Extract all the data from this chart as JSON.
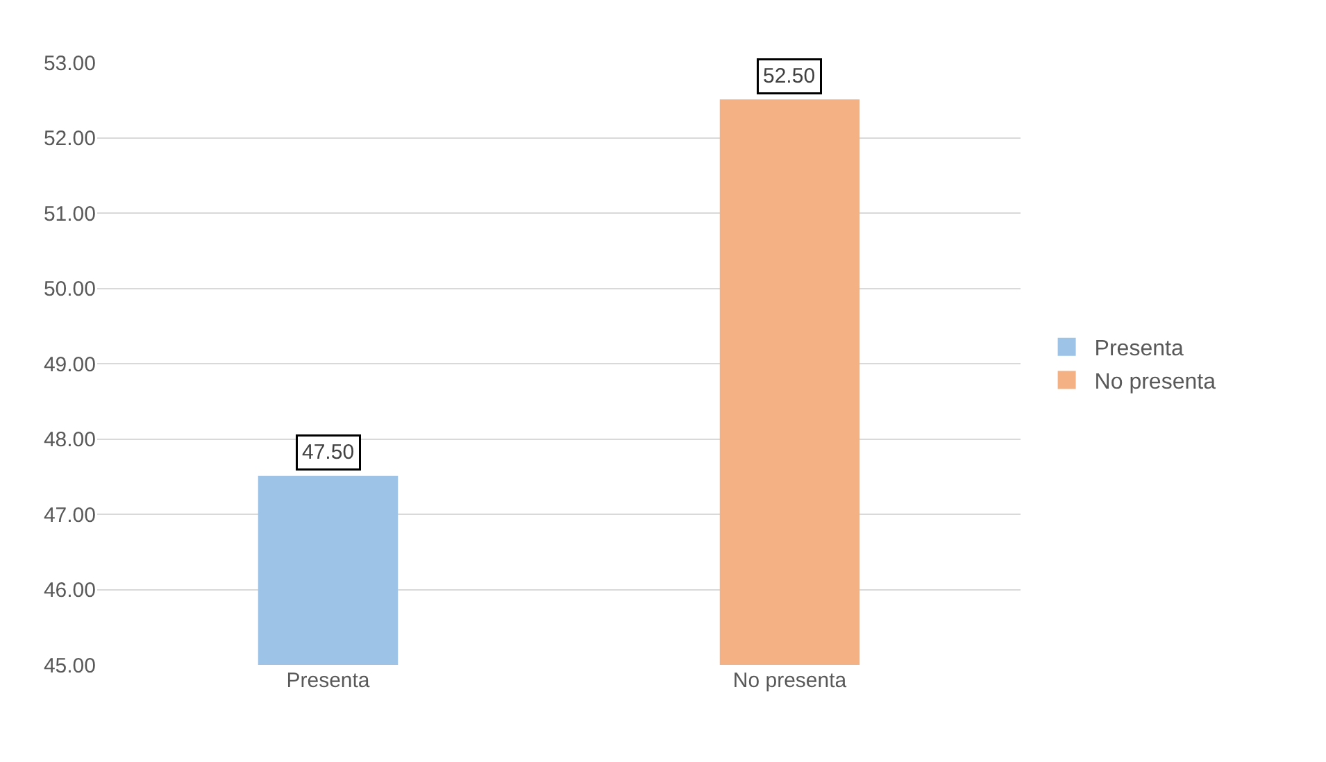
{
  "chart_data": {
    "type": "bar",
    "categories": [
      "Presenta",
      "No presenta"
    ],
    "series": [
      {
        "name": "Presenta",
        "color": "#9dc3e6",
        "values": [
          47.5,
          null
        ],
        "value_labels": [
          "47.50",
          null
        ]
      },
      {
        "name": "No presenta",
        "color": "#f4b183",
        "values": [
          null,
          52.5
        ],
        "value_labels": [
          null,
          "52.50"
        ]
      }
    ],
    "ylim": [
      45,
      53
    ],
    "yticks": [
      {
        "value": 45,
        "label": "45.00"
      },
      {
        "value": 46,
        "label": "46.00"
      },
      {
        "value": 47,
        "label": "47.00"
      },
      {
        "value": 48,
        "label": "48.00"
      },
      {
        "value": 49,
        "label": "49.00"
      },
      {
        "value": 50,
        "label": "50.00"
      },
      {
        "value": 51,
        "label": "51.00"
      },
      {
        "value": 52,
        "label": "52.00"
      },
      {
        "value": 53,
        "label": "53.00"
      }
    ],
    "grid": "y",
    "legend": "right"
  }
}
